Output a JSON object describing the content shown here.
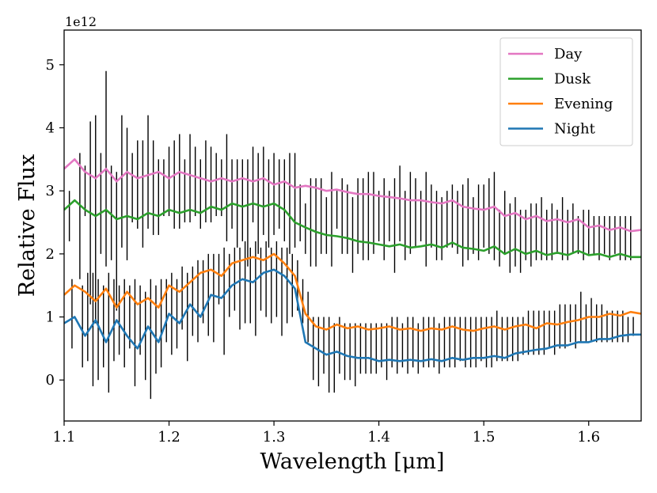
{
  "chart_data": {
    "type": "line",
    "title": "",
    "xlabel": "Wavelength [μm]",
    "ylabel": "Relative Flux",
    "y_offset_label": "1e12",
    "xlim": [
      1.1,
      1.65
    ],
    "ylim": [
      -0.65,
      5.55
    ],
    "x_ticks": [
      1.1,
      1.2,
      1.3,
      1.4,
      1.5,
      1.6
    ],
    "x_tick_labels": [
      "1.1",
      "1.2",
      "1.3",
      "1.4",
      "1.5",
      "1.6"
    ],
    "y_ticks": [
      0,
      1,
      2,
      3,
      4,
      5
    ],
    "y_tick_labels": [
      "0",
      "1",
      "2",
      "3",
      "4",
      "5"
    ],
    "legend_position": "top-right",
    "grid": false,
    "series": [
      {
        "name": "Day",
        "color": "#e377c2",
        "x": [
          1.1,
          1.11,
          1.12,
          1.13,
          1.14,
          1.15,
          1.16,
          1.17,
          1.18,
          1.19,
          1.2,
          1.21,
          1.22,
          1.23,
          1.24,
          1.25,
          1.26,
          1.27,
          1.28,
          1.29,
          1.3,
          1.31,
          1.32,
          1.33,
          1.34,
          1.35,
          1.36,
          1.37,
          1.38,
          1.39,
          1.4,
          1.41,
          1.42,
          1.43,
          1.44,
          1.45,
          1.46,
          1.47,
          1.48,
          1.49,
          1.5,
          1.51,
          1.52,
          1.53,
          1.54,
          1.55,
          1.56,
          1.57,
          1.58,
          1.59,
          1.6,
          1.61,
          1.62,
          1.63,
          1.64,
          1.65
        ],
        "y": [
          3.35,
          3.5,
          3.3,
          3.2,
          3.35,
          3.15,
          3.3,
          3.2,
          3.25,
          3.3,
          3.2,
          3.3,
          3.25,
          3.2,
          3.15,
          3.2,
          3.15,
          3.2,
          3.15,
          3.2,
          3.1,
          3.15,
          3.05,
          3.08,
          3.05,
          3.0,
          3.02,
          2.98,
          2.95,
          2.95,
          2.92,
          2.9,
          2.88,
          2.85,
          2.85,
          2.82,
          2.8,
          2.85,
          2.75,
          2.72,
          2.7,
          2.75,
          2.6,
          2.65,
          2.55,
          2.6,
          2.52,
          2.55,
          2.5,
          2.55,
          2.42,
          2.45,
          2.38,
          2.42,
          2.36,
          2.38
        ]
      },
      {
        "name": "Dusk",
        "color": "#2ca02c",
        "x": [
          1.1,
          1.11,
          1.12,
          1.13,
          1.14,
          1.15,
          1.16,
          1.17,
          1.18,
          1.19,
          1.2,
          1.21,
          1.22,
          1.23,
          1.24,
          1.25,
          1.26,
          1.27,
          1.28,
          1.29,
          1.3,
          1.31,
          1.32,
          1.33,
          1.34,
          1.35,
          1.36,
          1.37,
          1.38,
          1.39,
          1.4,
          1.41,
          1.42,
          1.43,
          1.44,
          1.45,
          1.46,
          1.47,
          1.48,
          1.49,
          1.5,
          1.51,
          1.52,
          1.53,
          1.54,
          1.55,
          1.56,
          1.57,
          1.58,
          1.59,
          1.6,
          1.61,
          1.62,
          1.63,
          1.64,
          1.65
        ],
        "y": [
          2.7,
          2.85,
          2.7,
          2.6,
          2.7,
          2.55,
          2.6,
          2.55,
          2.65,
          2.6,
          2.7,
          2.65,
          2.7,
          2.65,
          2.75,
          2.7,
          2.8,
          2.75,
          2.8,
          2.75,
          2.8,
          2.7,
          2.5,
          2.42,
          2.35,
          2.3,
          2.28,
          2.25,
          2.2,
          2.18,
          2.15,
          2.12,
          2.15,
          2.1,
          2.12,
          2.15,
          2.1,
          2.18,
          2.1,
          2.08,
          2.05,
          2.12,
          2.0,
          2.08,
          2.0,
          2.05,
          1.98,
          2.02,
          1.98,
          2.05,
          1.98,
          2.0,
          1.95,
          2.0,
          1.95,
          1.95
        ]
      },
      {
        "name": "Evening",
        "color": "#ff7f0e",
        "x": [
          1.1,
          1.11,
          1.12,
          1.13,
          1.14,
          1.15,
          1.16,
          1.17,
          1.18,
          1.19,
          1.2,
          1.21,
          1.22,
          1.23,
          1.24,
          1.25,
          1.26,
          1.27,
          1.28,
          1.29,
          1.3,
          1.31,
          1.32,
          1.33,
          1.34,
          1.35,
          1.36,
          1.37,
          1.38,
          1.39,
          1.4,
          1.41,
          1.42,
          1.43,
          1.44,
          1.45,
          1.46,
          1.47,
          1.48,
          1.49,
          1.5,
          1.51,
          1.52,
          1.53,
          1.54,
          1.55,
          1.56,
          1.57,
          1.58,
          1.59,
          1.6,
          1.61,
          1.62,
          1.63,
          1.64,
          1.65
        ],
        "y": [
          1.35,
          1.5,
          1.4,
          1.25,
          1.45,
          1.15,
          1.4,
          1.2,
          1.3,
          1.15,
          1.5,
          1.4,
          1.55,
          1.7,
          1.75,
          1.65,
          1.85,
          1.9,
          1.95,
          1.9,
          2.0,
          1.85,
          1.65,
          1.05,
          0.85,
          0.8,
          0.88,
          0.82,
          0.85,
          0.8,
          0.82,
          0.85,
          0.8,
          0.82,
          0.78,
          0.82,
          0.8,
          0.85,
          0.8,
          0.78,
          0.82,
          0.85,
          0.8,
          0.85,
          0.88,
          0.82,
          0.9,
          0.88,
          0.92,
          0.95,
          1.0,
          1.0,
          1.05,
          1.02,
          1.08,
          1.05
        ]
      },
      {
        "name": "Night",
        "color": "#1f77b4",
        "x": [
          1.1,
          1.11,
          1.12,
          1.13,
          1.14,
          1.15,
          1.16,
          1.17,
          1.18,
          1.19,
          1.2,
          1.21,
          1.22,
          1.23,
          1.24,
          1.25,
          1.26,
          1.27,
          1.28,
          1.29,
          1.3,
          1.31,
          1.32,
          1.33,
          1.34,
          1.35,
          1.36,
          1.37,
          1.38,
          1.39,
          1.4,
          1.41,
          1.42,
          1.43,
          1.44,
          1.45,
          1.46,
          1.47,
          1.48,
          1.49,
          1.5,
          1.51,
          1.52,
          1.53,
          1.54,
          1.55,
          1.56,
          1.57,
          1.58,
          1.59,
          1.6,
          1.61,
          1.62,
          1.63,
          1.64,
          1.65
        ],
        "y": [
          0.9,
          1.0,
          0.7,
          0.95,
          0.6,
          0.95,
          0.7,
          0.5,
          0.85,
          0.6,
          1.05,
          0.9,
          1.2,
          1.0,
          1.35,
          1.3,
          1.5,
          1.6,
          1.55,
          1.7,
          1.75,
          1.65,
          1.45,
          0.6,
          0.5,
          0.4,
          0.45,
          0.38,
          0.35,
          0.35,
          0.3,
          0.32,
          0.3,
          0.32,
          0.3,
          0.33,
          0.3,
          0.35,
          0.32,
          0.35,
          0.35,
          0.38,
          0.35,
          0.42,
          0.45,
          0.48,
          0.5,
          0.55,
          0.55,
          0.6,
          0.6,
          0.65,
          0.65,
          0.7,
          0.72,
          0.72
        ]
      }
    ],
    "error_bars": {
      "color": "#000000",
      "x": [
        1.105,
        1.115,
        1.12,
        1.125,
        1.13,
        1.135,
        1.14,
        1.145,
        1.15,
        1.155,
        1.16,
        1.165,
        1.17,
        1.175,
        1.18,
        1.185,
        1.19,
        1.195,
        1.2,
        1.205,
        1.21,
        1.215,
        1.22,
        1.225,
        1.23,
        1.235,
        1.24,
        1.245,
        1.25,
        1.255,
        1.26,
        1.265,
        1.27,
        1.275,
        1.28,
        1.285,
        1.29,
        1.295,
        1.3,
        1.305,
        1.31,
        1.315,
        1.32,
        1.325,
        1.33,
        1.335,
        1.34,
        1.345,
        1.35,
        1.355,
        1.36,
        1.365,
        1.37,
        1.375,
        1.38,
        1.385,
        1.39,
        1.395,
        1.4,
        1.405,
        1.41,
        1.415,
        1.42,
        1.425,
        1.43,
        1.435,
        1.44,
        1.445,
        1.45,
        1.455,
        1.46,
        1.465,
        1.47,
        1.475,
        1.48,
        1.485,
        1.49,
        1.495,
        1.5,
        1.505,
        1.51,
        1.515,
        1.52,
        1.525,
        1.53,
        1.535,
        1.54,
        1.545,
        1.55,
        1.555,
        1.56,
        1.565,
        1.57,
        1.575,
        1.58,
        1.585,
        1.59,
        1.595,
        1.6,
        1.605,
        1.61,
        1.615,
        1.62,
        1.625,
        1.63,
        1.635,
        1.64
      ],
      "low": [
        2.2,
        1.6,
        2.6,
        1.2,
        0.9,
        2.0,
        1.8,
        1.9,
        1.1,
        2.1,
        1.9,
        2.5,
        2.4,
        2.1,
        2.4,
        2.3,
        2.3,
        2.6,
        2.6,
        2.4,
        2.4,
        2.5,
        2.5,
        2.6,
        2.4,
        2.5,
        2.5,
        2.6,
        2.6,
        2.2,
        2.4,
        2.1,
        2.2,
        1.8,
        2.5,
        2.0,
        2.3,
        2.1,
        2.3,
        2.4,
        2.2,
        2.0,
        2.1,
        2.2,
        2.0,
        1.8,
        1.8,
        2.0,
        2.0,
        1.8,
        2.4,
        2.0,
        2.0,
        1.7,
        2.0,
        1.9,
        1.9,
        2.0,
        2.2,
        1.9,
        2.2,
        1.7,
        2.2,
        1.9,
        2.0,
        2.1,
        2.2,
        1.8,
        2.1,
        1.9,
        1.9,
        2.1,
        2.1,
        2.0,
        1.8,
        1.9,
        2.0,
        1.9,
        2.1,
        2.0,
        1.9,
        1.8,
        2.0,
        1.7,
        1.8,
        1.7,
        1.9,
        1.8,
        1.9,
        1.9,
        1.9,
        1.9,
        2.0,
        1.9,
        1.9,
        2.0,
        2.0,
        1.9,
        2.0,
        2.0,
        1.9,
        2.0,
        1.9,
        2.0,
        1.9,
        1.9,
        1.9
      ],
      "high": [
        3.0,
        3.6,
        3.4,
        4.1,
        4.2,
        3.6,
        4.9,
        3.4,
        3.3,
        4.2,
        4.0,
        3.6,
        3.8,
        3.8,
        4.2,
        3.8,
        3.5,
        3.5,
        3.7,
        3.8,
        3.9,
        3.5,
        3.9,
        3.7,
        3.5,
        3.8,
        3.7,
        3.6,
        3.5,
        3.9,
        3.5,
        3.5,
        3.5,
        3.5,
        3.7,
        3.6,
        3.7,
        3.5,
        3.6,
        3.5,
        3.5,
        3.6,
        3.6,
        3.1,
        2.8,
        3.2,
        3.2,
        3.2,
        2.9,
        3.3,
        3.0,
        3.2,
        3.1,
        2.9,
        3.2,
        3.2,
        3.3,
        3.3,
        3.0,
        3.2,
        3.0,
        3.2,
        3.4,
        3.0,
        3.3,
        3.2,
        3.0,
        3.3,
        3.1,
        3.0,
        2.9,
        3.0,
        3.1,
        3.0,
        3.1,
        3.2,
        2.9,
        3.1,
        3.1,
        3.2,
        3.3,
        2.7,
        3.0,
        2.8,
        2.9,
        2.7,
        2.7,
        2.8,
        2.8,
        2.9,
        2.7,
        2.8,
        2.7,
        2.9,
        2.7,
        2.8,
        2.6,
        2.7,
        2.7,
        2.6,
        2.6,
        2.6,
        2.6,
        2.6,
        2.6,
        2.6,
        2.6
      ],
      "low2": [
        0.5,
        0.2,
        0.3,
        -0.1,
        0.0,
        0.2,
        -0.2,
        0.3,
        0.4,
        0.2,
        0.5,
        -0.1,
        0.4,
        0.0,
        -0.3,
        0.1,
        0.2,
        0.6,
        0.4,
        0.5,
        0.8,
        0.3,
        0.7,
        0.6,
        0.9,
        0.7,
        0.6,
        1.2,
        0.4,
        1.0,
        1.1,
        0.8,
        0.9,
        0.9,
        0.7,
        1.1,
        1.0,
        0.9,
        1.0,
        0.7,
        0.9,
        1.0,
        1.1,
        0.9,
        0.6,
        0.0,
        -0.1,
        0.1,
        -0.2,
        -0.2,
        0.1,
        0.0,
        0.0,
        -0.1,
        0.1,
        0.1,
        0.1,
        0.1,
        0.2,
        0.0,
        0.2,
        0.1,
        0.2,
        0.1,
        0.2,
        0.1,
        0.2,
        0.2,
        0.2,
        0.1,
        0.2,
        0.2,
        0.2,
        0.3,
        0.2,
        0.2,
        0.2,
        0.3,
        0.2,
        0.2,
        0.3,
        0.3,
        0.3,
        0.3,
        0.3,
        0.4,
        0.4,
        0.4,
        0.4,
        0.4,
        0.5,
        0.4,
        0.5,
        0.5,
        0.6,
        0.5,
        0.6,
        0.6,
        0.6,
        0.6,
        0.6,
        0.6,
        0.6,
        0.6,
        0.6,
        0.6,
        0.7
      ],
      "high2": [
        1.6,
        1.5,
        1.7,
        1.7,
        1.6,
        1.5,
        1.7,
        1.6,
        1.5,
        1.6,
        1.5,
        1.6,
        1.5,
        1.4,
        1.6,
        1.5,
        1.6,
        1.6,
        1.7,
        1.6,
        1.8,
        1.7,
        1.8,
        1.9,
        1.9,
        2.0,
        2.0,
        2.0,
        2.1,
        2.0,
        2.1,
        2.1,
        2.2,
        2.1,
        2.2,
        2.1,
        2.2,
        2.1,
        2.2,
        2.1,
        2.1,
        2.0,
        1.9,
        1.6,
        1.4,
        1.0,
        1.0,
        1.0,
        1.0,
        0.9,
        1.0,
        0.9,
        0.9,
        0.9,
        0.9,
        0.9,
        0.9,
        0.9,
        0.9,
        0.9,
        1.0,
        1.0,
        0.9,
        1.0,
        1.0,
        0.9,
        1.0,
        1.0,
        1.0,
        0.9,
        1.0,
        1.0,
        1.0,
        1.0,
        1.0,
        1.0,
        1.0,
        1.0,
        1.0,
        1.0,
        1.1,
        1.0,
        1.0,
        1.0,
        1.0,
        1.0,
        1.1,
        1.1,
        1.1,
        1.1,
        1.1,
        1.1,
        1.2,
        1.2,
        1.2,
        1.2,
        1.4,
        1.2,
        1.3,
        1.2,
        1.2,
        1.1,
        1.1,
        1.1,
        1.1,
        1.0,
        1.0
      ]
    }
  }
}
